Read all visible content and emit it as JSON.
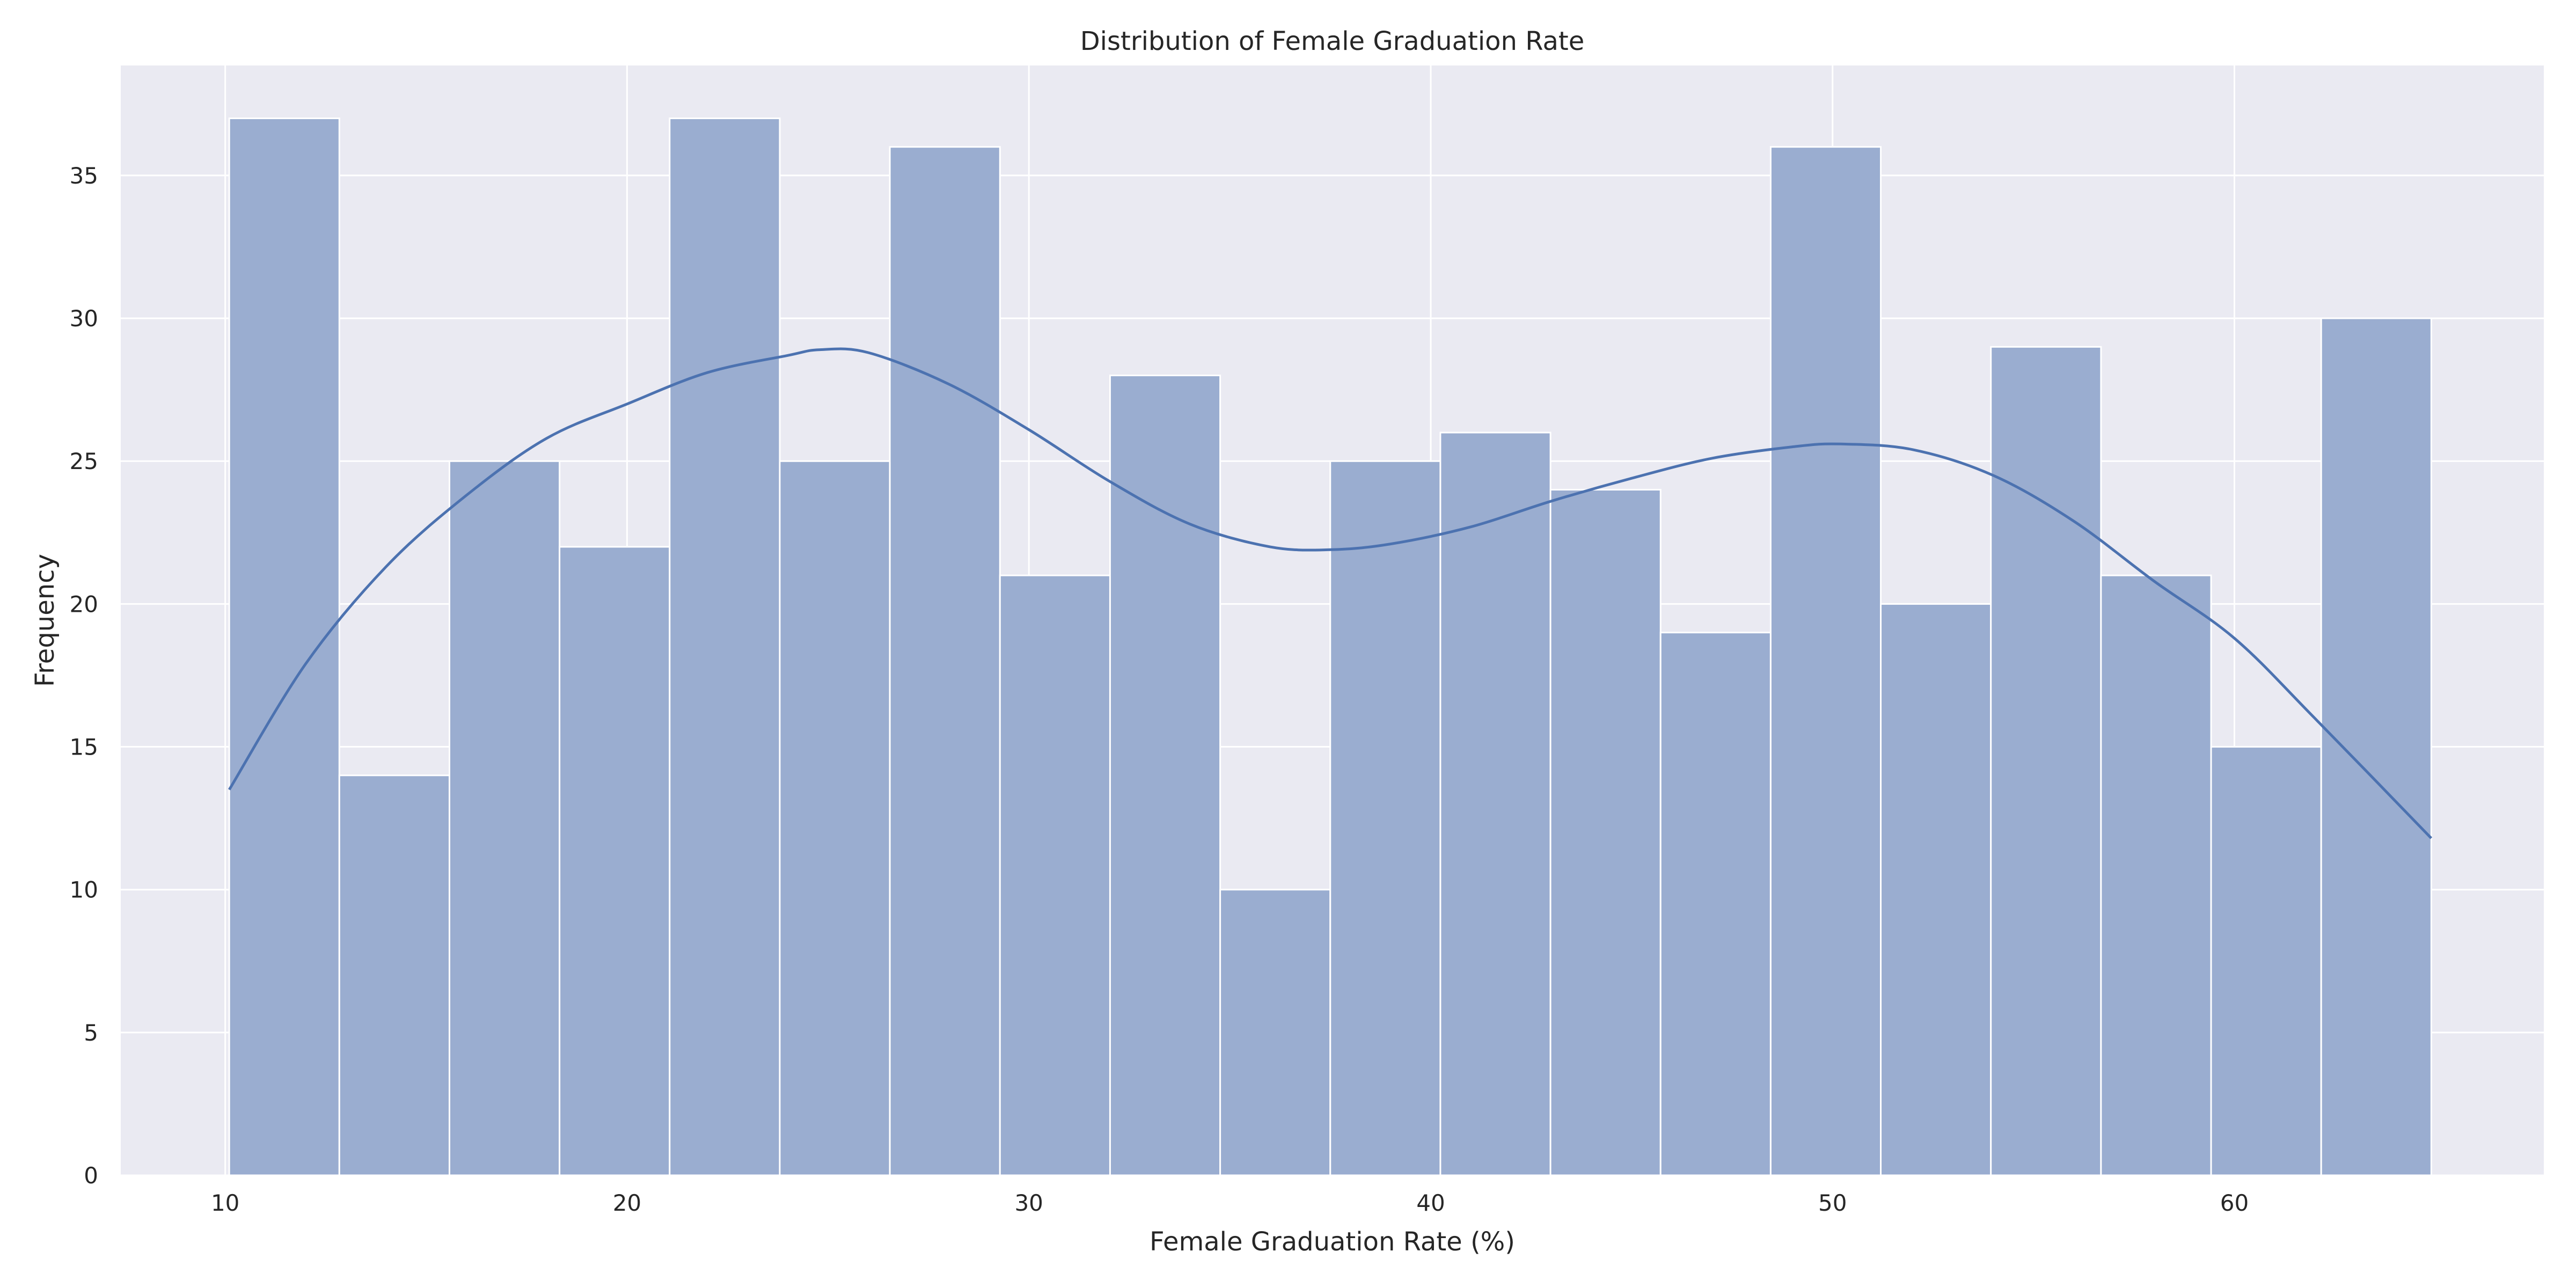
{
  "chart_data": {
    "type": "bar",
    "title": "Distribution of Female Graduation Rate",
    "xlabel": "Female Graduation Rate (%)",
    "ylabel": "Frequency",
    "xlim": [
      7.4,
      67.7
    ],
    "ylim": [
      0,
      38.85
    ],
    "grid": true,
    "legend": "none",
    "bin_edges": [
      10.1,
      12.84,
      15.58,
      18.32,
      21.06,
      23.8,
      26.54,
      29.28,
      32.02,
      34.76,
      37.5,
      40.24,
      42.98,
      45.72,
      48.46,
      51.2,
      53.94,
      56.68,
      59.42,
      62.16,
      64.9
    ],
    "values": [
      37,
      14,
      25,
      22,
      37,
      25,
      36,
      21,
      28,
      10,
      25,
      26,
      24,
      19,
      36,
      20,
      29,
      21,
      15,
      30
    ],
    "kde": {
      "x": [
        10.1,
        12.0,
        14.0,
        16.0,
        18.0,
        20.0,
        22.0,
        24.0,
        24.8,
        26.0,
        28.0,
        30.0,
        32.0,
        34.0,
        36.0,
        37.5,
        39.0,
        41.0,
        43.0,
        45.0,
        47.0,
        49.0,
        50.2,
        52.0,
        54.0,
        56.0,
        58.0,
        60.0,
        62.0,
        64.9
      ],
      "y": [
        13.5,
        17.9,
        21.3,
        23.8,
        25.8,
        27.0,
        28.1,
        28.7,
        28.9,
        28.8,
        27.7,
        26.1,
        24.3,
        22.8,
        22.0,
        21.9,
        22.1,
        22.7,
        23.6,
        24.4,
        25.1,
        25.5,
        25.6,
        25.4,
        24.5,
        22.9,
        20.8,
        18.8,
        16.0,
        11.8
      ]
    },
    "xticks": [
      10,
      20,
      30,
      40,
      50,
      60
    ],
    "yticks": [
      0,
      5,
      10,
      15,
      20,
      25,
      30,
      35
    ],
    "colors": {
      "bar_fill": "#9aadd0",
      "bar_edge": "#ffffff",
      "kde_line": "#4c72b0",
      "plot_bg": "#eaeaf2",
      "grid": "#ffffff",
      "text": "#262626"
    }
  }
}
